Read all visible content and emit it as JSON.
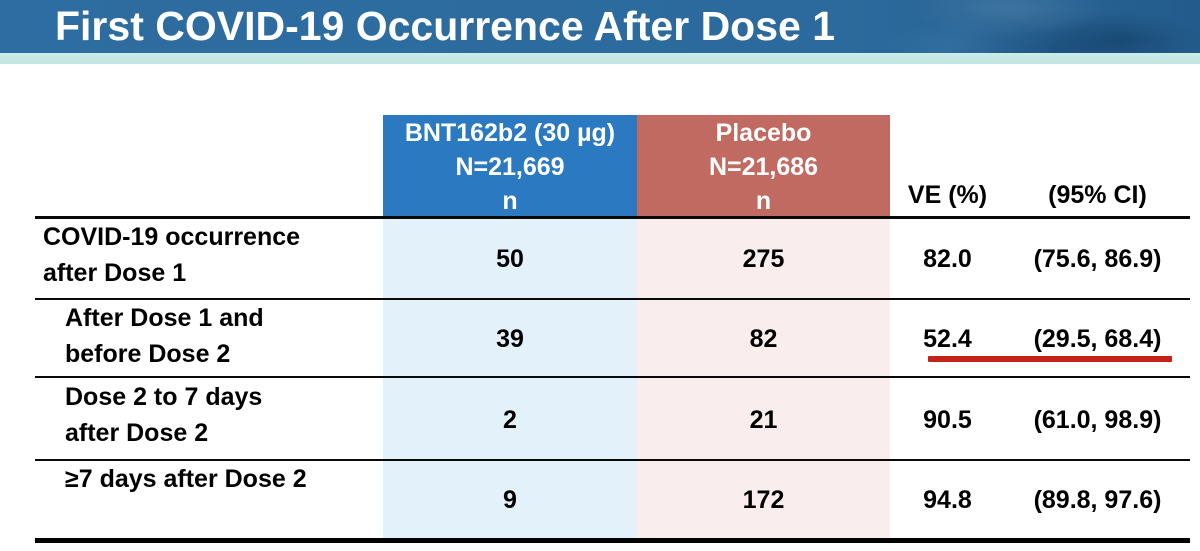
{
  "title_bar": {
    "title": "First COVID-19 Occurrence After Dose 1"
  },
  "chart_data": {
    "type": "table",
    "title": "First COVID-19 Occurrence After Dose 1",
    "column_headers": {
      "group1": {
        "name": "BNT162b2 (30 µg)",
        "n_total": "N=21,669",
        "unit": "n"
      },
      "group2": {
        "name": "Placebo",
        "n_total": "N=21,686",
        "unit": "n"
      },
      "ve": "VE (%)",
      "ci": "(95% CI)"
    },
    "rows": [
      {
        "label_line1": "COVID-19 occurrence",
        "label_line2": "after Dose 1",
        "bnt_n": "50",
        "placebo_n": "275",
        "ve": "82.0",
        "ci": "(75.6, 86.9)"
      },
      {
        "label_line1": "After Dose 1 and",
        "label_line2": "before Dose 2",
        "bnt_n": "39",
        "placebo_n": "82",
        "ve": "52.4",
        "ci": "(29.5, 68.4)"
      },
      {
        "label_line1": "Dose 2 to 7 days",
        "label_line2": "after Dose 2",
        "bnt_n": "2",
        "placebo_n": "21",
        "ve": "90.5",
        "ci": "(61.0, 98.9)"
      },
      {
        "label_line1": "≥7 days after Dose 2",
        "label_line2": "",
        "bnt_n": "9",
        "placebo_n": "172",
        "ve": "94.8",
        "ci": "(89.8, 97.6)"
      }
    ],
    "annotations": [
      {
        "type": "underline",
        "color": "#c42118",
        "target": "row 2 VE and CI values (52.4 and (29.5, 68.4))"
      }
    ],
    "layout_hints": {
      "grid": "horizontal rules only",
      "indented_rows": [
        1,
        2,
        3
      ]
    }
  },
  "colors": {
    "title_bar_blue": "#2c6a9d",
    "accent_strip": "#bfe5e1",
    "bnt_header": "#2b7ac1",
    "placebo_header": "#c06a61",
    "bnt_tint": "#e3f1fb",
    "placebo_tint": "#faeded",
    "highlight_red": "#c42118",
    "rule_black": "#000000"
  }
}
